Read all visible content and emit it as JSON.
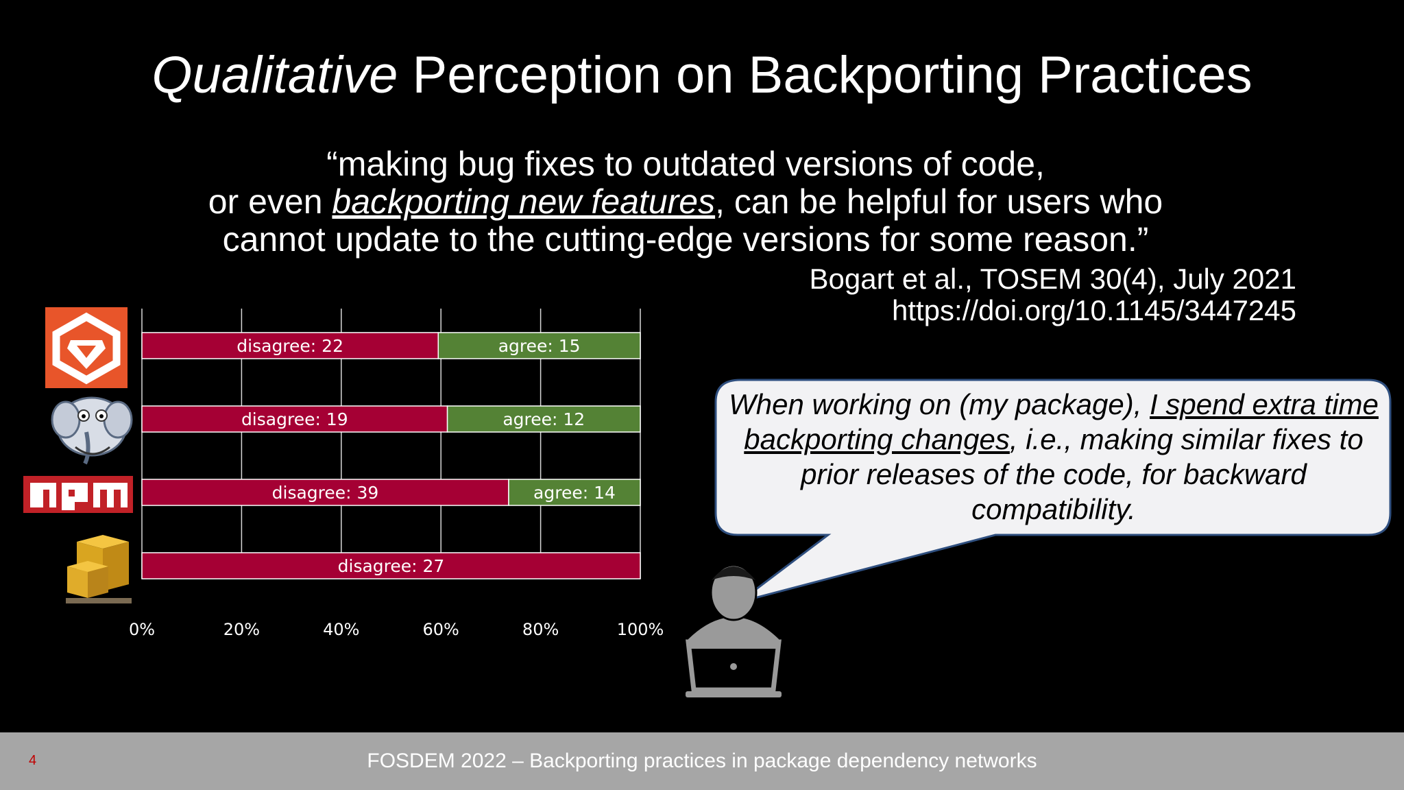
{
  "slide": {
    "title_italic": "Qualitative",
    "title_rest": " Perception on Backporting Practices",
    "quote": {
      "line1": "“making bug fixes to outdated versions of code,",
      "line2_pre": "or even ",
      "line2_emph": "backporting new features",
      "line2_post": ", can be helpful for users who",
      "line3": "cannot update to the cutting-edge versions for some reason.”"
    },
    "citation": {
      "line1": "Bogart et al., TOSEM 30(4), July 2021",
      "line2": "https://doi.org/10.1145/3447245"
    },
    "bubble": {
      "pre": "When working on (my package), ",
      "emph": "I spend extra time backporting changes",
      "post": ", i.e., making similar fixes to prior releases of the code, for backward compatibility."
    },
    "footer": {
      "page_number": "4",
      "text": "FOSDEM 2022 – Backporting practices in package dependency networks"
    }
  },
  "chart_data": {
    "type": "bar",
    "orientation": "horizontal",
    "stacking": "percent",
    "categories": [
      "rubygems-icon",
      "cpan-icon",
      "npm-logo",
      "cran-boxes-icon"
    ],
    "series": [
      {
        "key": "disagree",
        "label": "disagree",
        "color": "#a50034",
        "values": [
          22,
          19,
          39,
          27
        ]
      },
      {
        "key": "agree",
        "label": "agree",
        "color": "#548235",
        "values": [
          15,
          12,
          14,
          0
        ]
      }
    ],
    "xticks": [
      "0%",
      "20%",
      "40%",
      "60%",
      "80%",
      "100%"
    ],
    "xlim": [
      0,
      100
    ],
    "grid": true
  },
  "colors": {
    "background": "#000000",
    "disagree": "#a50034",
    "agree": "#548235",
    "footer_bg": "#a6a6a6",
    "bubble_bg": "#f2f2f4",
    "bubble_border": "#2f4f7f"
  }
}
